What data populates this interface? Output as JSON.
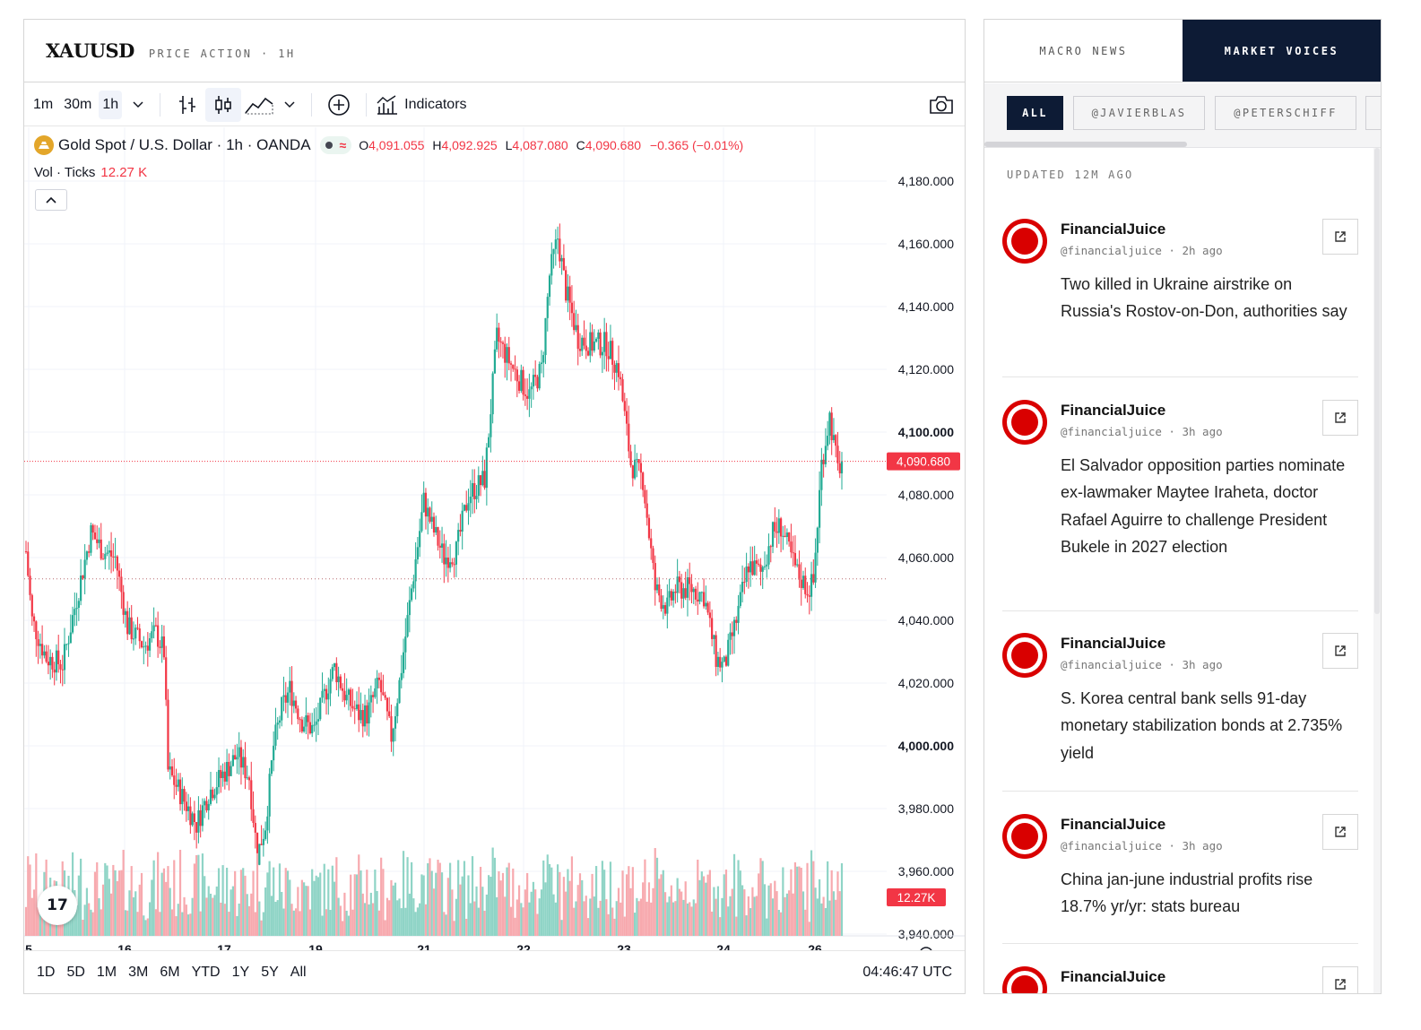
{
  "chart_panel": {
    "symbol": "XAUUSD",
    "subtitle": "PRICE ACTION · 1H",
    "timeframes": [
      "1m",
      "30m",
      "1h"
    ],
    "active_timeframe": "1h",
    "indicators_label": "Indicators",
    "instrument": "Gold Spot / U.S. Dollar · 1h · OANDA",
    "ohlc": {
      "o_label": "O",
      "o": "4,091.055",
      "h_label": "H",
      "h": "4,092.925",
      "l_label": "L",
      "l": "4,087.080",
      "c_label": "C",
      "c": "4,090.680",
      "change": "−0.365 (−0.01%)"
    },
    "volume_label": "Vol · Ticks",
    "volume_value": "12.27 K",
    "price_tag": "4,090.680",
    "volume_tag": "12.27K",
    "ranges": [
      "1D",
      "5D",
      "1M",
      "3M",
      "6M",
      "YTD",
      "1Y",
      "5Y",
      "All"
    ],
    "clock": "04:46:47 UTC",
    "up_color": "#22ab94",
    "down_color": "#f23645"
  },
  "chart_data": {
    "type": "candlestick",
    "y_axis_labels": [
      "4,180.000",
      "4,160.000",
      "4,140.000",
      "4,120.000",
      "4,100.000",
      "4,080.000",
      "4,060.000",
      "4,040.000",
      "4,020.000",
      "4,000.000",
      "3,980.000",
      "3,960.000",
      "3,940.000"
    ],
    "y_axis_bold": [
      "4,100.000",
      "4,000.000"
    ],
    "ylim": [
      3940,
      4180
    ],
    "x_axis_labels": [
      "5",
      "16",
      "17",
      "19",
      "21",
      "22",
      "23",
      "24",
      "26"
    ],
    "last_price": 4090.68,
    "reference_price": 4053.2,
    "price_keypoints": [
      [
        0,
        4062
      ],
      [
        3,
        4040
      ],
      [
        10,
        4028
      ],
      [
        18,
        4026
      ],
      [
        26,
        4050
      ],
      [
        32,
        4068
      ],
      [
        38,
        4062
      ],
      [
        44,
        4060
      ],
      [
        50,
        4038
      ],
      [
        58,
        4032
      ],
      [
        64,
        4036
      ],
      [
        68,
        4030
      ],
      [
        70,
        3992
      ],
      [
        76,
        3985
      ],
      [
        84,
        3975
      ],
      [
        90,
        3985
      ],
      [
        96,
        3990
      ],
      [
        104,
        3997
      ],
      [
        110,
        3990
      ],
      [
        114,
        3965
      ],
      [
        118,
        3975
      ],
      [
        122,
        4000
      ],
      [
        126,
        4012
      ],
      [
        130,
        4018
      ],
      [
        136,
        4008
      ],
      [
        142,
        4005
      ],
      [
        148,
        4018
      ],
      [
        152,
        4025
      ],
      [
        158,
        4015
      ],
      [
        164,
        4010
      ],
      [
        168,
        4010
      ],
      [
        174,
        4020
      ],
      [
        180,
        4003
      ],
      [
        184,
        4020
      ],
      [
        190,
        4050
      ],
      [
        196,
        4078
      ],
      [
        200,
        4070
      ],
      [
        206,
        4060
      ],
      [
        212,
        4062
      ],
      [
        218,
        4080
      ],
      [
        226,
        4085
      ],
      [
        232,
        4130
      ],
      [
        236,
        4125
      ],
      [
        242,
        4118
      ],
      [
        248,
        4112
      ],
      [
        254,
        4120
      ],
      [
        258,
        4150
      ],
      [
        262,
        4162
      ],
      [
        266,
        4145
      ],
      [
        272,
        4130
      ],
      [
        278,
        4128
      ],
      [
        286,
        4128
      ],
      [
        292,
        4120
      ],
      [
        298,
        4090
      ],
      [
        304,
        4085
      ],
      [
        310,
        4050
      ],
      [
        316,
        4044
      ],
      [
        320,
        4050
      ],
      [
        328,
        4050
      ],
      [
        334,
        4048
      ],
      [
        340,
        4028
      ],
      [
        344,
        4025
      ],
      [
        350,
        4040
      ],
      [
        356,
        4058
      ],
      [
        362,
        4055
      ],
      [
        368,
        4068
      ],
      [
        372,
        4070
      ],
      [
        376,
        4062
      ],
      [
        380,
        4055
      ],
      [
        385,
        4050
      ],
      [
        388,
        4052
      ],
      [
        392,
        4090
      ],
      [
        396,
        4105
      ],
      [
        400,
        4088
      ],
      [
        402,
        4090.68
      ]
    ],
    "volume_max_label": "12.27K"
  },
  "news_panel": {
    "tabs": [
      "MACRO NEWS",
      "MARKET VOICES"
    ],
    "active_tab": "MARKET VOICES",
    "filters": [
      "ALL",
      "@JAVIERBLAS",
      "@PETERSCHIFF"
    ],
    "active_filter": "ALL",
    "updated": "UPDATED 12M AGO",
    "posts": [
      {
        "author": "FinancialJuice",
        "handle": "@financialjuice",
        "time": "2h ago",
        "text": "Two killed in Ukraine airstrike on Russia's Rostov-on-Don, authorities say"
      },
      {
        "author": "FinancialJuice",
        "handle": "@financialjuice",
        "time": "3h ago",
        "text": "El Salvador opposition parties nominate ex-lawmaker Maytee Iraheta, doctor Rafael Aguirre to challenge President Bukele in 2027 election"
      },
      {
        "author": "FinancialJuice",
        "handle": "@financialjuice",
        "time": "3h ago",
        "text": "S. Korea central bank sells 91-day monetary stabilization bonds at 2.735% yield"
      },
      {
        "author": "FinancialJuice",
        "handle": "@financialjuice",
        "time": "3h ago",
        "text": "China jan-june industrial profits rise 18.7% yr/yr: stats bureau"
      },
      {
        "author": "FinancialJuice",
        "handle": "",
        "time": "",
        "text": ""
      }
    ]
  }
}
